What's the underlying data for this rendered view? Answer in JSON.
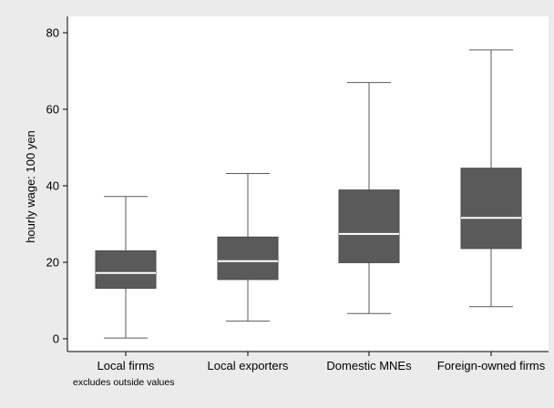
{
  "chart_data": {
    "type": "box",
    "title": "",
    "xlabel": "",
    "ylabel": "hourly wage: 100 yen",
    "note": "excludes outside values",
    "ylim": [
      -2,
      84
    ],
    "yticks": [
      0,
      20,
      40,
      60,
      80
    ],
    "grid": false,
    "legend": "none",
    "categories": [
      "Local firms",
      "Local exporters",
      "Domestic MNEs",
      "Foreign-owned firms"
    ],
    "boxes": [
      {
        "category": "Local firms",
        "whisker_low": 0.2,
        "q1": 13.2,
        "median": 17.2,
        "q3": 23.0,
        "whisker_high": 37.2
      },
      {
        "category": "Local exporters",
        "whisker_low": 4.6,
        "q1": 15.5,
        "median": 20.3,
        "q3": 26.6,
        "whisker_high": 43.2
      },
      {
        "category": "Domestic MNEs",
        "whisker_low": 6.6,
        "q1": 19.9,
        "median": 27.4,
        "q3": 38.9,
        "whisker_high": 67.0
      },
      {
        "category": "Foreign-owned firms",
        "whisker_low": 8.4,
        "q1": 23.6,
        "median": 31.6,
        "q3": 44.6,
        "whisker_high": 75.5
      }
    ],
    "colors": {
      "background": "#ebebeb",
      "plot_background": "#ffffff",
      "box_fill": "#5a5a5a",
      "median_line": "#ffffff",
      "whisker": "#5a5a5a",
      "axis": "#000000"
    }
  }
}
